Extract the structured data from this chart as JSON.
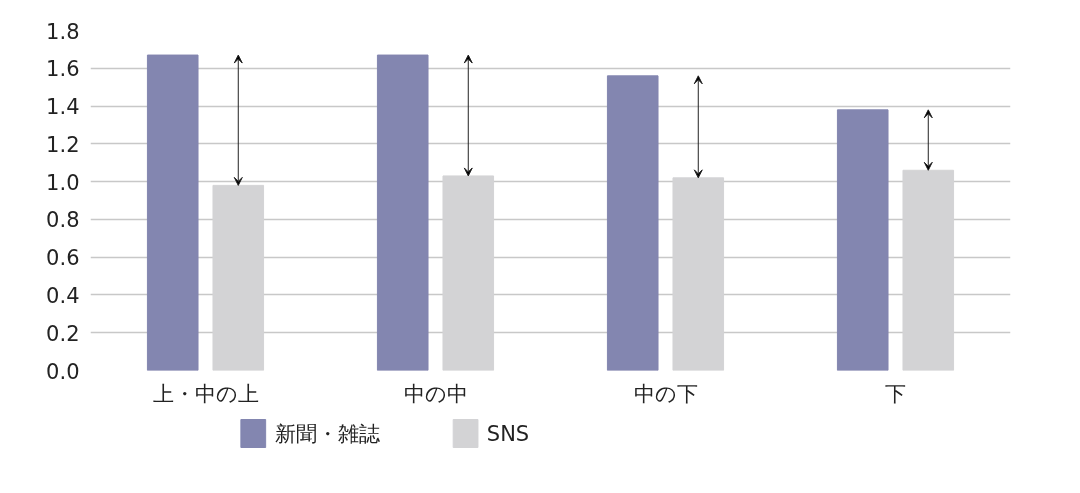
{
  "chart_data": {
    "type": "bar",
    "categories": [
      "上・中の上",
      "中の中",
      "中の下",
      "下"
    ],
    "series": [
      {
        "name": "新聞・雑誌",
        "color": "#8386b0",
        "values": [
          1.67,
          1.67,
          1.56,
          1.38
        ]
      },
      {
        "name": "SNS",
        "color": "#d3d3d5",
        "values": [
          0.98,
          1.03,
          1.02,
          1.06
        ]
      }
    ],
    "ylim": [
      0,
      1.8
    ],
    "yticks": [
      {
        "value": 0,
        "label": "0.0"
      },
      0.2,
      0.4,
      0.6,
      0.8,
      {
        "value": 1,
        "label": "1.0"
      },
      1.2,
      1.4,
      1.6,
      1.8
    ],
    "grid": "y",
    "legend": "bottom"
  }
}
